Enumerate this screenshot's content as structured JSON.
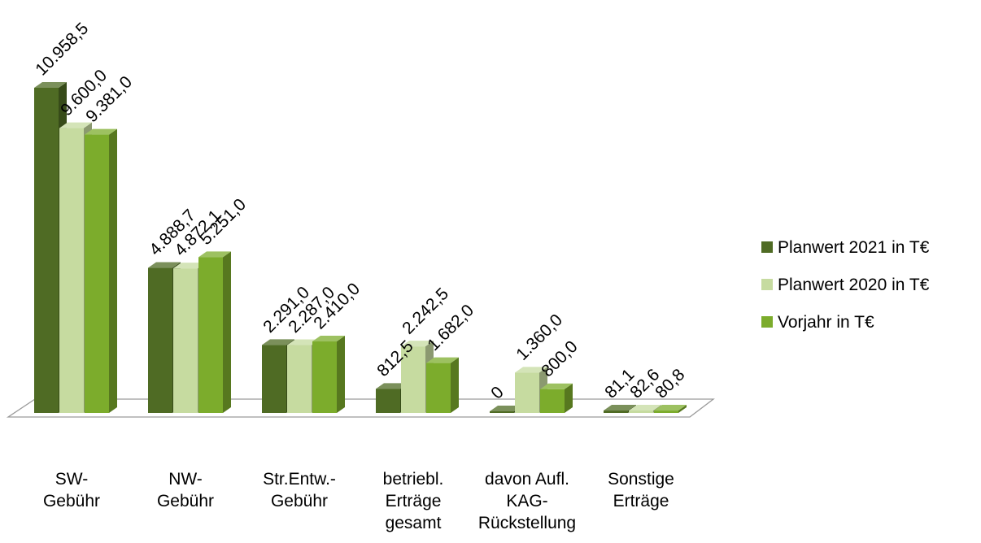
{
  "chart_data": {
    "type": "bar",
    "style": "3d-clustered-column",
    "title": "",
    "xlabel": "",
    "ylabel": "",
    "ylim": [
      0,
      12000
    ],
    "grid": false,
    "legend_position": "right",
    "categories": [
      [
        "SW-",
        "Gebühr"
      ],
      [
        "NW-",
        "Gebühr"
      ],
      [
        "Str.Entw.-",
        "Gebühr"
      ],
      [
        "betriebl.",
        "Erträge",
        "gesamt"
      ],
      [
        "davon Aufl.",
        "KAG-",
        "Rückstellung"
      ],
      [
        "Sonstige",
        "Erträge"
      ]
    ],
    "series": [
      {
        "name": "Planwert 2021 in T€",
        "color": "#4f6b24",
        "values": [
          10958.5,
          4888.7,
          2291.0,
          812.5,
          0,
          81.1
        ],
        "labels": [
          "10.958,5",
          "4.888,7",
          "2.291,0",
          "812,5",
          "0",
          "81,1"
        ]
      },
      {
        "name": "Planwert 2020 in T€",
        "color": "#c6dba0",
        "values": [
          9600.0,
          4872.1,
          2287.0,
          2242.5,
          1360.0,
          82.6
        ],
        "labels": [
          "9.600,0",
          "4.872,1",
          "2.287,0",
          "2.242,5",
          "1.360,0",
          "82,6"
        ]
      },
      {
        "name": "Vorjahr in T€",
        "color": "#7cac2c",
        "values": [
          9381.0,
          5251.0,
          2410.0,
          1682.0,
          800.0,
          80.8
        ],
        "labels": [
          "9.381,0",
          "5.251,0",
          "2.410,0",
          "1.682,0",
          "800,0",
          "80,8"
        ]
      }
    ]
  }
}
